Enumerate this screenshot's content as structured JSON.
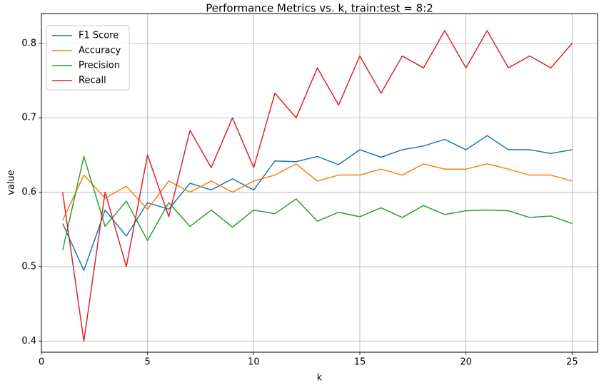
{
  "chart_data": {
    "type": "line",
    "title": "Performance Metrics vs. k, train:test = 8:2",
    "xlabel": "k",
    "ylabel": "value",
    "x": [
      1,
      2,
      3,
      4,
      5,
      6,
      7,
      8,
      9,
      10,
      11,
      12,
      13,
      14,
      15,
      16,
      17,
      18,
      19,
      20,
      21,
      22,
      23,
      24,
      25
    ],
    "xlim": [
      0.0,
      26.2
    ],
    "ylim": [
      0.385,
      0.84
    ],
    "xticks": [
      0,
      5,
      10,
      15,
      20,
      25
    ],
    "xtick_labels": [
      "0",
      "5",
      "10",
      "15",
      "20",
      "25"
    ],
    "yticks": [
      0.4,
      0.5,
      0.6,
      0.7,
      0.8
    ],
    "ytick_labels": [
      "0.4",
      "0.5",
      "0.6",
      "0.7",
      "0.8"
    ],
    "grid": true,
    "legend_position": "top-left",
    "series": [
      {
        "name": "F1 Score",
        "color": "#1f77b4",
        "values": [
          0.558,
          0.495,
          0.576,
          0.541,
          0.586,
          0.577,
          0.612,
          0.603,
          0.618,
          0.603,
          0.642,
          0.641,
          0.648,
          0.637,
          0.657,
          0.647,
          0.657,
          0.662,
          0.671,
          0.657,
          0.676,
          0.657,
          0.657,
          0.652,
          0.657
        ]
      },
      {
        "name": "Accuracy",
        "color": "#ff7f0e",
        "values": [
          0.562,
          0.623,
          0.592,
          0.608,
          0.577,
          0.615,
          0.6,
          0.615,
          0.6,
          0.615,
          0.623,
          0.638,
          0.615,
          0.623,
          0.623,
          0.631,
          0.623,
          0.638,
          0.631,
          0.631,
          0.638,
          0.631,
          0.623,
          0.623,
          0.615
        ]
      },
      {
        "name": "Precision",
        "color": "#2ca02c",
        "values": [
          0.522,
          0.648,
          0.554,
          0.588,
          0.535,
          0.586,
          0.554,
          0.576,
          0.553,
          0.576,
          0.571,
          0.591,
          0.561,
          0.573,
          0.567,
          0.579,
          0.566,
          0.582,
          0.57,
          0.575,
          0.576,
          0.575,
          0.566,
          0.568,
          0.558
        ]
      },
      {
        "name": "Recall",
        "color": "#d62728",
        "values": [
          0.6,
          0.4,
          0.6,
          0.5,
          0.65,
          0.567,
          0.683,
          0.633,
          0.7,
          0.633,
          0.733,
          0.7,
          0.767,
          0.717,
          0.783,
          0.733,
          0.783,
          0.767,
          0.817,
          0.767,
          0.817,
          0.767,
          0.783,
          0.767,
          0.8
        ]
      }
    ]
  }
}
